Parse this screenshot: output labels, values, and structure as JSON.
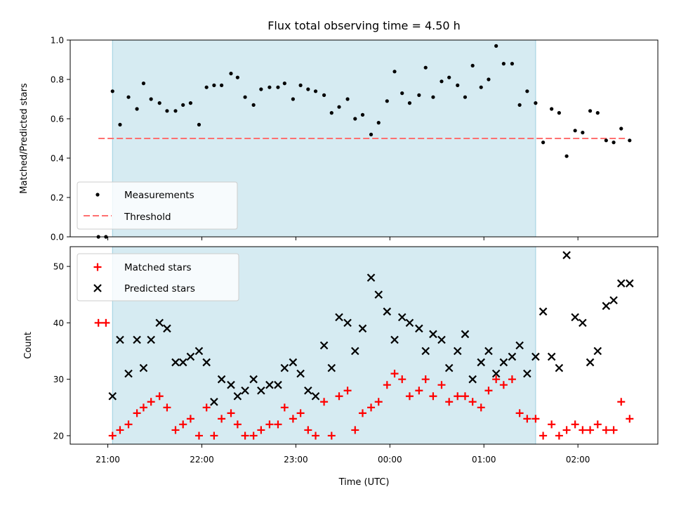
{
  "chart_data": [
    {
      "type": "scatter",
      "title": "Flux total observing time = 4.50 h",
      "ylabel": "Matched/Predicted stars",
      "xlabel": "",
      "ylim": [
        0.0,
        1.0
      ],
      "yticks": [
        "0.0",
        "0.2",
        "0.4",
        "0.6",
        "0.8",
        "1.0"
      ],
      "x_unit": "hours_since_21:00_UTC",
      "shaded_interval": [
        0.05,
        4.55
      ],
      "threshold": 0.5,
      "threshold_x_range": [
        -0.1,
        5.5
      ],
      "legend": {
        "placement": "lower-left",
        "entries": [
          "Measurements",
          "Threshold"
        ]
      },
      "series": [
        {
          "name": "Measurements",
          "x": [
            -0.1,
            -0.02,
            0.05,
            0.13,
            0.22,
            0.31,
            0.38,
            0.46,
            0.55,
            0.63,
            0.72,
            0.8,
            0.88,
            0.97,
            1.05,
            1.13,
            1.21,
            1.31,
            1.38,
            1.46,
            1.55,
            1.63,
            1.72,
            1.81,
            1.88,
            1.97,
            2.05,
            2.13,
            2.21,
            2.3,
            2.38,
            2.46,
            2.55,
            2.63,
            2.71,
            2.8,
            2.88,
            2.97,
            3.05,
            3.13,
            3.21,
            3.31,
            3.38,
            3.46,
            3.55,
            3.63,
            3.72,
            3.8,
            3.88,
            3.97,
            4.05,
            4.13,
            4.21,
            4.3,
            4.38,
            4.46,
            4.55,
            4.63,
            4.72,
            4.8,
            4.88,
            4.97,
            5.05,
            5.13,
            5.21,
            5.3,
            5.38,
            5.46,
            5.55
          ],
          "y": [
            0.0,
            0.0,
            0.74,
            0.57,
            0.71,
            0.65,
            0.78,
            0.7,
            0.68,
            0.64,
            0.64,
            0.67,
            0.68,
            0.57,
            0.76,
            0.77,
            0.77,
            0.83,
            0.81,
            0.71,
            0.67,
            0.75,
            0.76,
            0.76,
            0.78,
            0.7,
            0.77,
            0.75,
            0.74,
            0.72,
            0.63,
            0.66,
            0.7,
            0.6,
            0.62,
            0.52,
            0.58,
            0.69,
            0.84,
            0.73,
            0.68,
            0.72,
            0.86,
            0.71,
            0.79,
            0.81,
            0.77,
            0.71,
            0.87,
            0.76,
            0.8,
            0.97,
            0.88,
            0.88,
            0.67,
            0.74,
            0.68,
            0.48,
            0.65,
            0.63,
            0.41,
            0.54,
            0.53,
            0.64,
            0.63,
            0.49,
            0.48,
            0.55,
            0.49
          ]
        }
      ]
    },
    {
      "type": "scatter",
      "title": "",
      "ylabel": "Count",
      "xlabel": "Time (UTC)",
      "ylim": [
        18.5,
        53.5
      ],
      "yticks": [
        "20",
        "30",
        "40",
        "50"
      ],
      "xticks": [
        "21:00",
        "22:00",
        "23:00",
        "00:00",
        "01:00",
        "02:00"
      ],
      "x_unit": "hours_since_21:00_UTC",
      "shaded_interval": [
        0.05,
        4.55
      ],
      "legend": {
        "placement": "top-left",
        "entries": [
          "Matched stars",
          "Predicted stars"
        ]
      },
      "series": [
        {
          "name": "Matched stars",
          "color": "#ff0000",
          "marker": "plus",
          "x": [
            -0.1,
            -0.02,
            0.05,
            0.13,
            0.22,
            0.31,
            0.38,
            0.46,
            0.55,
            0.63,
            0.72,
            0.8,
            0.88,
            0.97,
            1.05,
            1.13,
            1.21,
            1.31,
            1.38,
            1.46,
            1.55,
            1.63,
            1.72,
            1.81,
            1.88,
            1.97,
            2.05,
            2.13,
            2.21,
            2.3,
            2.38,
            2.46,
            2.55,
            2.63,
            2.71,
            2.8,
            2.88,
            2.97,
            3.05,
            3.13,
            3.21,
            3.31,
            3.38,
            3.46,
            3.55,
            3.63,
            3.72,
            3.8,
            3.88,
            3.97,
            4.05,
            4.13,
            4.21,
            4.3,
            4.38,
            4.46,
            4.55,
            4.63,
            4.72,
            4.8,
            4.88,
            4.97,
            5.05,
            5.13,
            5.21,
            5.3,
            5.38,
            5.46,
            5.55
          ],
          "y": [
            40,
            40,
            20,
            21,
            22,
            24,
            25,
            26,
            27,
            25,
            21,
            22,
            23,
            20,
            25,
            20,
            23,
            24,
            22,
            20,
            20,
            21,
            22,
            22,
            25,
            23,
            24,
            21,
            20,
            26,
            20,
            27,
            28,
            21,
            24,
            25,
            26,
            29,
            31,
            30,
            27,
            28,
            30,
            27,
            29,
            26,
            27,
            27,
            26,
            25,
            28,
            30,
            29,
            30,
            24,
            23,
            23,
            20,
            22,
            20,
            21,
            22,
            21,
            21,
            22,
            21,
            21,
            26,
            23
          ]
        },
        {
          "name": "Predicted stars",
          "color": "#000000",
          "marker": "x",
          "x": [
            0.05,
            0.13,
            0.22,
            0.31,
            0.38,
            0.46,
            0.55,
            0.63,
            0.72,
            0.8,
            0.88,
            0.97,
            1.05,
            1.13,
            1.21,
            1.31,
            1.38,
            1.46,
            1.55,
            1.63,
            1.72,
            1.81,
            1.88,
            1.97,
            2.05,
            2.13,
            2.21,
            2.3,
            2.38,
            2.46,
            2.55,
            2.63,
            2.71,
            2.8,
            2.88,
            2.97,
            3.05,
            3.13,
            3.21,
            3.31,
            3.38,
            3.46,
            3.55,
            3.63,
            3.72,
            3.8,
            3.88,
            3.97,
            4.05,
            4.13,
            4.21,
            4.3,
            4.38,
            4.46,
            4.55,
            4.63,
            4.72,
            4.8,
            4.88,
            4.97,
            5.05,
            5.13,
            5.21,
            5.3,
            5.38,
            5.46,
            5.55
          ],
          "y": [
            27,
            37,
            31,
            37,
            32,
            37,
            40,
            39,
            33,
            33,
            34,
            35,
            33,
            26,
            30,
            29,
            27,
            28,
            30,
            28,
            29,
            29,
            32,
            33,
            31,
            28,
            27,
            36,
            32,
            41,
            40,
            35,
            39,
            48,
            45,
            42,
            37,
            41,
            40,
            39,
            35,
            38,
            37,
            32,
            35,
            38,
            30,
            33,
            35,
            31,
            33,
            34,
            36,
            31,
            34,
            42,
            34,
            32,
            52,
            41,
            40,
            33,
            35,
            43,
            44,
            47,
            47
          ]
        }
      ]
    }
  ]
}
